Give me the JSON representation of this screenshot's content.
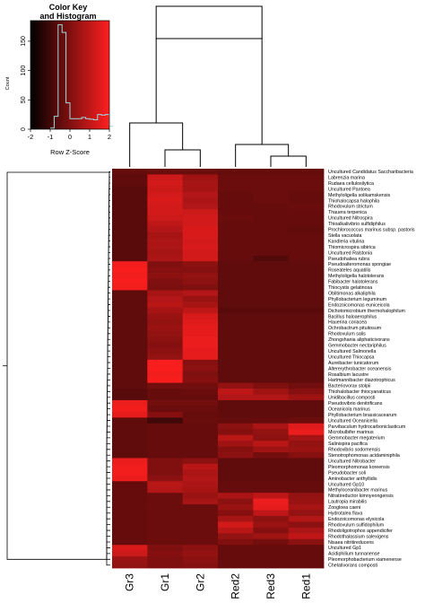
{
  "key": {
    "title_line1": "Color Key",
    "title_line2": "and Histogram",
    "x_label": "Row Z-Score",
    "y_label": "Count",
    "x_ticks": [
      "-2",
      "-1",
      "0",
      "1",
      "2"
    ],
    "y_ticks": [
      "0",
      "50",
      "100",
      "150"
    ],
    "gradient": [
      "#000000",
      "#ff1f1f"
    ]
  },
  "chart_data": {
    "type": "heatmap",
    "title": "",
    "columns": [
      "Gr3",
      "Gr1",
      "Gr2",
      "Red2",
      "Red3",
      "Red1"
    ],
    "color_scale": {
      "low": -2,
      "high": 2,
      "low_color": "#000000",
      "high_color": "#ff1f1f"
    },
    "histogram": {
      "x": [
        -1.0,
        -0.8,
        -0.6,
        -0.4,
        -0.2,
        0.0,
        0.2,
        0.4,
        0.6,
        0.8,
        1.0,
        1.2,
        1.4,
        1.6,
        1.8,
        2.0
      ],
      "count": [
        2,
        22,
        178,
        165,
        45,
        18,
        18,
        18,
        20,
        18,
        17,
        16,
        25,
        24,
        25,
        5
      ]
    },
    "rows": [
      "Uncultured Candidatus  Saccharibacteria",
      "Labrenzia marina",
      "Rudaea cellulosilytica",
      "Uncultured Pantoea",
      "Methyloligella solikamskensis",
      "Thiohalocapsa halophila",
      "Rhodovulum strictum",
      "Thauera terpenica",
      "Uncultured Nitrospira",
      "Thioalkalivibrio sulfidiphilus",
      "Prochlorococcus marinus subsp. pastoris",
      "Stella vacuolata",
      "Kandleria vitulina",
      "Thiomicrospira sibirica",
      "Uncultured Ralstonia",
      "Pseudohaliea rubra",
      "Pseudoalteromonas spongiae",
      "Roseateles aquatilis",
      "Methyloligella halotolerans",
      "Fabibacter halotolerans",
      "Thiocystis gelatinosa",
      "Oblitimonas alkaliphila",
      "Phyllobacterium leguminum",
      "Endozoicomonas euniceicola",
      "Dichotomicrobium thermohalophilum",
      "Bacillus haloaerophilus",
      "Hauerina coriacea",
      "Ochrobactrum pituitosum",
      "Rhodovulum salis",
      "Zhongshania aliphaticivorans",
      "Gemmobacter nectariphilus",
      "Uncultured Salmonella",
      "Uncultured Thiocapsa",
      "Aureibacter tunicatorum",
      "Altererythrobacter oceanensis",
      "Rosalbium lacustre",
      "Hartmannibacter diazotrophicus",
      "Bacteriovorax stolpii",
      "Thiohalobacter thiocyanaticus",
      "Unidibacillus composti",
      "Pseudovibrio denitrificans",
      "Oceanicola marinus",
      "Phyllobacterium brassicacearum",
      "Uncultured Oceanicella",
      "Parvibaculum hydrocarboniclasticum",
      "Microbulbifer marinus",
      "Gemmobacter megaterium",
      "Salinispira pacifica",
      "Rhodovibrio sodomensis",
      "Stenotrophomonas acidaminiphila",
      "Uncultured Nitrobacter",
      "Pleomorphomonas koreensis",
      "Pseudobacter soli",
      "Aminobacter anthyllidis",
      "Uncultured Gp10",
      "Methyloceanibacter marinus",
      "Nitratireductor kimnyeongensis",
      "Lautropia mirabilis",
      "Zoogloea caeni",
      "Hydrotalea flava",
      "Endozoicomonas elysicola",
      "Rhodovulum sulfidophilum",
      "Rhodoligotrophos appendicifer",
      "Rhodothalassium salexigens",
      "Nisaea nitritireducens",
      "Uncultured Gp1",
      "Acidiphilium tunnanense",
      "Pleomorphobacterium xiamenense",
      "Chelativorans composti"
    ],
    "values": [
      [
        -0.4,
        -0.3,
        -0.3,
        -0.4,
        -0.4,
        -0.4
      ],
      [
        -0.5,
        1.2,
        0.5,
        -0.3,
        -0.3,
        -0.3
      ],
      [
        -0.5,
        1.3,
        0.6,
        -0.3,
        -0.3,
        -0.3
      ],
      [
        -0.6,
        1.2,
        0.6,
        -0.3,
        -0.3,
        -0.3
      ],
      [
        -0.6,
        1.3,
        0.8,
        -0.4,
        -0.3,
        -0.4
      ],
      [
        -0.6,
        1.4,
        0.7,
        -0.4,
        -0.3,
        -0.4
      ],
      [
        -0.6,
        1.3,
        0.8,
        -0.4,
        -0.4,
        -0.3
      ],
      [
        -0.6,
        1.3,
        1.2,
        -0.4,
        -0.4,
        -0.4
      ],
      [
        -0.6,
        1.2,
        1.3,
        -0.3,
        -0.4,
        -0.4
      ],
      [
        -0.6,
        1.0,
        1.3,
        -0.4,
        -0.4,
        -0.4
      ],
      [
        -0.6,
        0.8,
        1.4,
        -0.4,
        -0.4,
        -0.5
      ],
      [
        -0.6,
        0.6,
        1.4,
        -0.4,
        -0.4,
        -0.4
      ],
      [
        -0.6,
        0.7,
        1.3,
        -0.4,
        -0.4,
        -0.4
      ],
      [
        -0.6,
        0.7,
        1.4,
        -0.4,
        -0.4,
        -0.4
      ],
      [
        -0.6,
        0.6,
        1.3,
        -0.4,
        -0.4,
        -0.4
      ],
      [
        -0.6,
        0.7,
        1.3,
        -0.4,
        -0.7,
        -0.4
      ],
      [
        1.8,
        0.0,
        0.2,
        -0.5,
        -0.5,
        -0.5
      ],
      [
        1.9,
        0.1,
        0.1,
        -0.5,
        -0.5,
        -0.5
      ],
      [
        1.8,
        0.2,
        0.3,
        -0.5,
        -0.5,
        -0.5
      ],
      [
        1.9,
        0.0,
        0.2,
        -0.5,
        -0.5,
        -0.5
      ],
      [
        1.8,
        -0.1,
        0.0,
        -0.5,
        -0.5,
        -0.5
      ],
      [
        -0.5,
        0.6,
        0.8,
        -0.5,
        -0.5,
        -0.5
      ],
      [
        -0.5,
        0.8,
        0.4,
        -0.5,
        -0.5,
        -0.5
      ],
      [
        -0.5,
        0.9,
        0.6,
        -0.5,
        -0.5,
        -0.5
      ],
      [
        -0.5,
        0.6,
        1.0,
        -0.6,
        -0.6,
        -0.6
      ],
      [
        -0.5,
        0.4,
        1.4,
        -0.5,
        -0.5,
        -0.5
      ],
      [
        -0.5,
        0.3,
        1.5,
        -0.5,
        -0.5,
        -0.5
      ],
      [
        -0.5,
        0.4,
        1.6,
        -0.5,
        -0.5,
        -0.5
      ],
      [
        -0.5,
        0.3,
        1.6,
        -0.5,
        -0.5,
        -0.5
      ],
      [
        -0.5,
        0.2,
        1.7,
        -0.5,
        -0.5,
        -0.5
      ],
      [
        -0.5,
        0.1,
        1.7,
        -0.5,
        -0.5,
        -0.5
      ],
      [
        -0.5,
        0.2,
        1.6,
        -0.5,
        -0.5,
        -0.5
      ],
      [
        -0.5,
        0.3,
        1.6,
        -0.5,
        -0.5,
        -0.5
      ],
      [
        -0.5,
        1.9,
        0.1,
        -0.5,
        -0.5,
        -0.5
      ],
      [
        -0.5,
        1.9,
        0.2,
        -0.5,
        -0.5,
        -0.5
      ],
      [
        -0.5,
        1.8,
        0.0,
        -0.5,
        -0.5,
        -0.5
      ],
      [
        -0.5,
        1.9,
        0.1,
        -0.5,
        -0.5,
        -0.5
      ],
      [
        -0.5,
        -0.2,
        -0.2,
        0.3,
        0.0,
        -0.2
      ],
      [
        -0.6,
        -0.4,
        -0.3,
        1.0,
        0.5,
        0.1
      ],
      [
        -0.6,
        -0.4,
        -0.4,
        0.8,
        0.8,
        0.5
      ],
      [
        1.7,
        -0.2,
        -0.2,
        -0.5,
        -0.5,
        -0.5
      ],
      [
        1.8,
        -0.3,
        -0.3,
        -0.5,
        -0.5,
        -0.5
      ],
      [
        1.6,
        0.1,
        -0.4,
        -0.5,
        -0.5,
        -0.5
      ],
      [
        -0.5,
        -1.0,
        -0.3,
        -0.4,
        -0.4,
        -0.3
      ],
      [
        -0.5,
        -0.4,
        -0.4,
        0.2,
        0.7,
        1.5
      ],
      [
        -0.5,
        -0.4,
        -0.4,
        0.1,
        0.3,
        1.7
      ],
      [
        -0.5,
        -0.4,
        -0.4,
        0.9,
        0.2,
        0.6
      ],
      [
        -0.5,
        -0.4,
        -0.4,
        0.5,
        0.9,
        0.3
      ],
      [
        -0.5,
        -0.4,
        -0.4,
        0.1,
        0.5,
        0.4
      ],
      [
        -0.5,
        -0.4,
        -0.4,
        0.2,
        -0.2,
        0.1
      ],
      [
        1.7,
        0.0,
        0.2,
        -0.5,
        -0.5,
        -0.5
      ],
      [
        1.8,
        0.0,
        0.9,
        -0.5,
        -0.5,
        -0.5
      ],
      [
        1.8,
        0.0,
        0.7,
        -0.5,
        -0.5,
        -0.5
      ],
      [
        1.7,
        0.2,
        0.8,
        -0.5,
        -0.5,
        -0.5
      ],
      [
        -0.4,
        0.9,
        0.7,
        -0.4,
        -0.4,
        -0.4
      ],
      [
        -0.4,
        0.8,
        0.6,
        -0.4,
        -0.4,
        -0.4
      ],
      [
        -0.4,
        -0.3,
        0.4,
        0.7,
        1.0,
        0.3
      ],
      [
        -0.4,
        -0.3,
        0.6,
        0.2,
        1.7,
        0.4
      ],
      [
        -0.4,
        -0.3,
        -0.3,
        0.4,
        1.6,
        0.6
      ],
      [
        -0.4,
        -0.3,
        -0.3,
        0.1,
        1.0,
        0.3
      ],
      [
        -0.4,
        -0.3,
        -0.3,
        0.6,
        0.2,
        0.8
      ],
      [
        -0.4,
        -0.3,
        -0.3,
        1.3,
        0.4,
        0.2
      ],
      [
        -0.4,
        -0.3,
        -0.3,
        0.9,
        0.1,
        0.7
      ],
      [
        -0.4,
        -0.3,
        -0.3,
        0.3,
        0.5,
        1.0
      ],
      [
        -0.4,
        -0.3,
        -0.3,
        0.0,
        -0.2,
        0.2
      ],
      [
        1.4,
        0.0,
        0.2,
        -0.4,
        -0.4,
        -0.4
      ],
      [
        1.2,
        0.1,
        0.3,
        -0.4,
        -0.4,
        -0.4
      ],
      [
        0.4,
        0.0,
        0.2,
        -0.4,
        -0.4,
        -0.4
      ],
      [
        0.3,
        0.0,
        0.1,
        -0.4,
        -0.4,
        -0.4
      ]
    ]
  }
}
